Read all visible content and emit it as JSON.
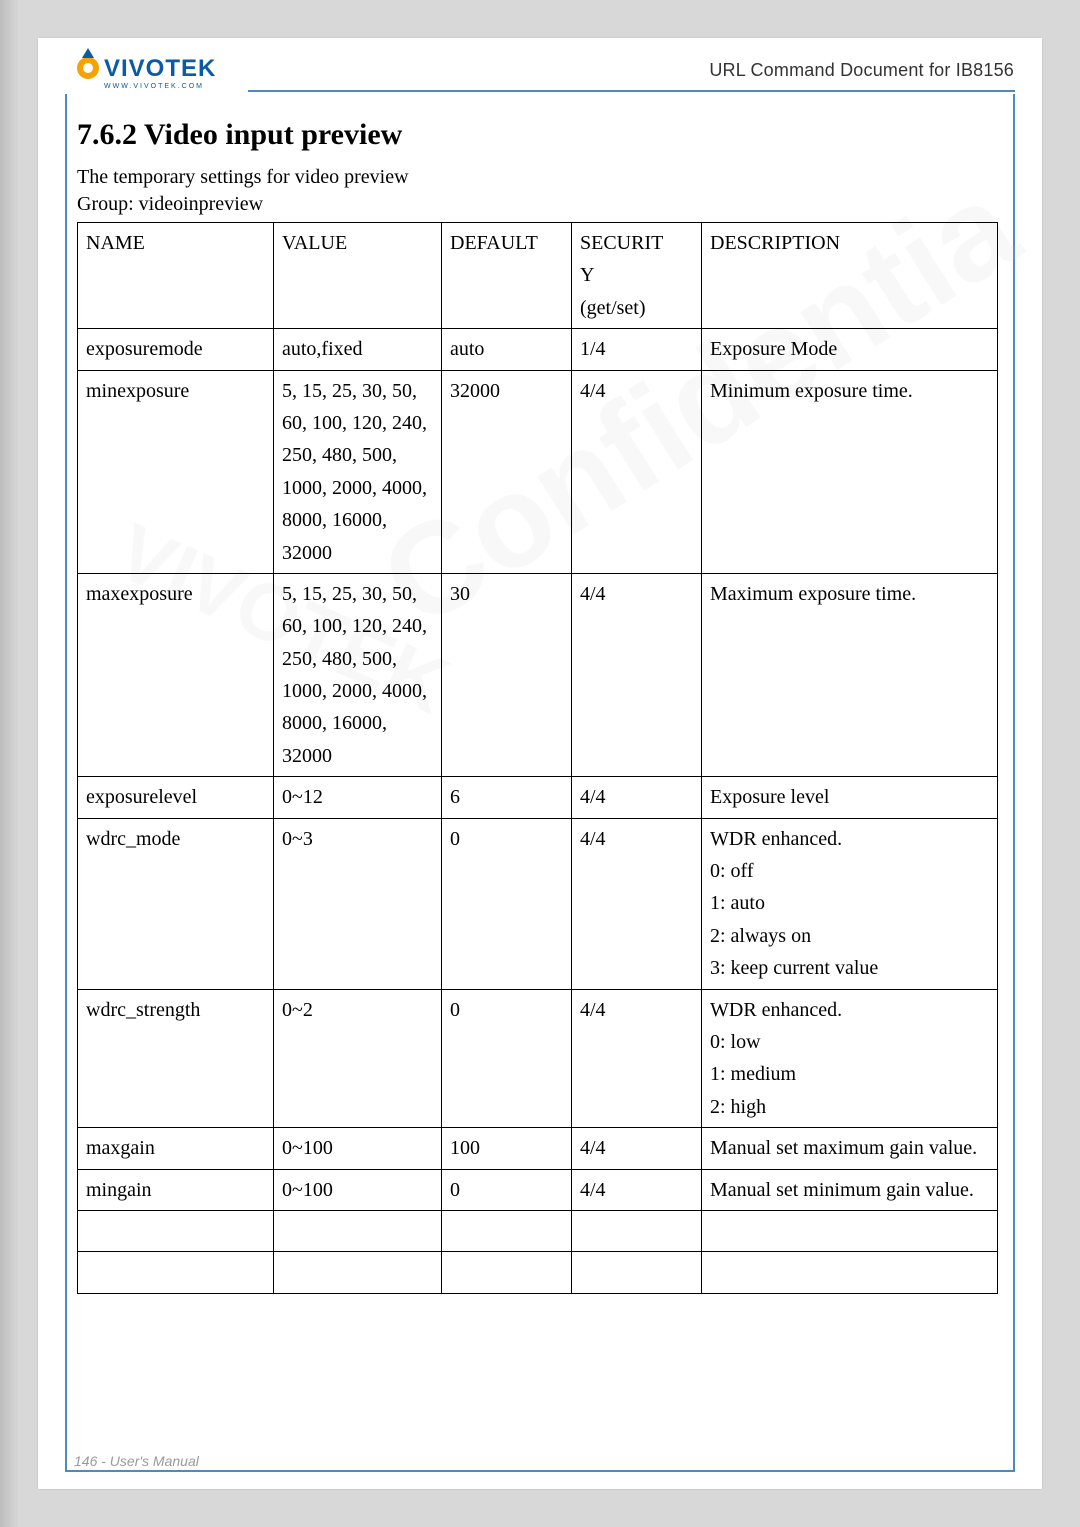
{
  "header": {
    "doc_title": "URL Command Document for IB8156",
    "logo_text_main": "VIVOTEK",
    "logo_sub": "www.vivotek.com"
  },
  "section": {
    "number_title": "7.6.2 Video input preview",
    "subtitle": "The temporary settings for video preview",
    "group_line": "Group: videoinpreview"
  },
  "table": {
    "headers": {
      "name": "NAME",
      "value": "VALUE",
      "default": "DEFAULT",
      "security_l1": "SECURIT",
      "security_l2": "Y",
      "security_l3": "(get/set)",
      "description": "DESCRIPTION"
    },
    "rows": [
      {
        "name": "exposuremode",
        "value": "auto,fixed",
        "default": "auto",
        "security": "1/4",
        "description": [
          "Exposure Mode"
        ]
      },
      {
        "name": "minexposure",
        "value": "5, 15, 25, 30, 50, 60, 100, 120, 240, 250, 480, 500, 1000, 2000, 4000, 8000, 16000, 32000",
        "default": "32000",
        "security": "4/4",
        "description": [
          "Minimum exposure time."
        ]
      },
      {
        "name": "maxexposure",
        "value": "5, 15, 25, 30, 50, 60, 100, 120, 240, 250, 480, 500, 1000, 2000, 4000, 8000, 16000, 32000",
        "default": "30",
        "security": "4/4",
        "description": [
          "Maximum exposure time."
        ]
      },
      {
        "name": "exposurelevel",
        "value": "0~12",
        "default": "6",
        "security": "4/4",
        "description": [
          "Exposure level"
        ]
      },
      {
        "name": "wdrc_mode",
        "value": "0~3",
        "default": "0",
        "security": "4/4",
        "description": [
          "WDR enhanced.",
          "0: off",
          "1: auto",
          "2: always on",
          "3: keep current value"
        ]
      },
      {
        "name": "wdrc_strength",
        "value": "0~2",
        "default": "0",
        "security": "4/4",
        "description": [
          "WDR enhanced.",
          "0: low",
          "1: medium",
          "2: high"
        ]
      },
      {
        "name": "maxgain",
        "value": "0~100",
        "default": "100",
        "security": "4/4",
        "description": [
          "Manual set maximum gain value."
        ]
      },
      {
        "name": "mingain",
        "value": "0~100",
        "default": "0",
        "security": "4/4",
        "description": [
          "Manual set minimum gain value."
        ]
      },
      {
        "name": "",
        "value": "",
        "default": "",
        "security": "",
        "description": [
          ""
        ]
      },
      {
        "name": "",
        "value": "",
        "default": "",
        "security": "",
        "description": [
          ""
        ]
      }
    ]
  },
  "footer": {
    "text": "146 - User's Manual"
  },
  "watermark": {
    "vivotek": "VIVOTEK",
    "confidential": "Confidential"
  },
  "colors": {
    "page_bg": "#ffffff",
    "outer_bg": "#d8d8d8",
    "border_blue": "#4f8abf",
    "text": "#000000",
    "footer_gray": "#9a9a9a",
    "logo_blue": "#0b5aa5",
    "logo_accent": "#f5a300"
  }
}
